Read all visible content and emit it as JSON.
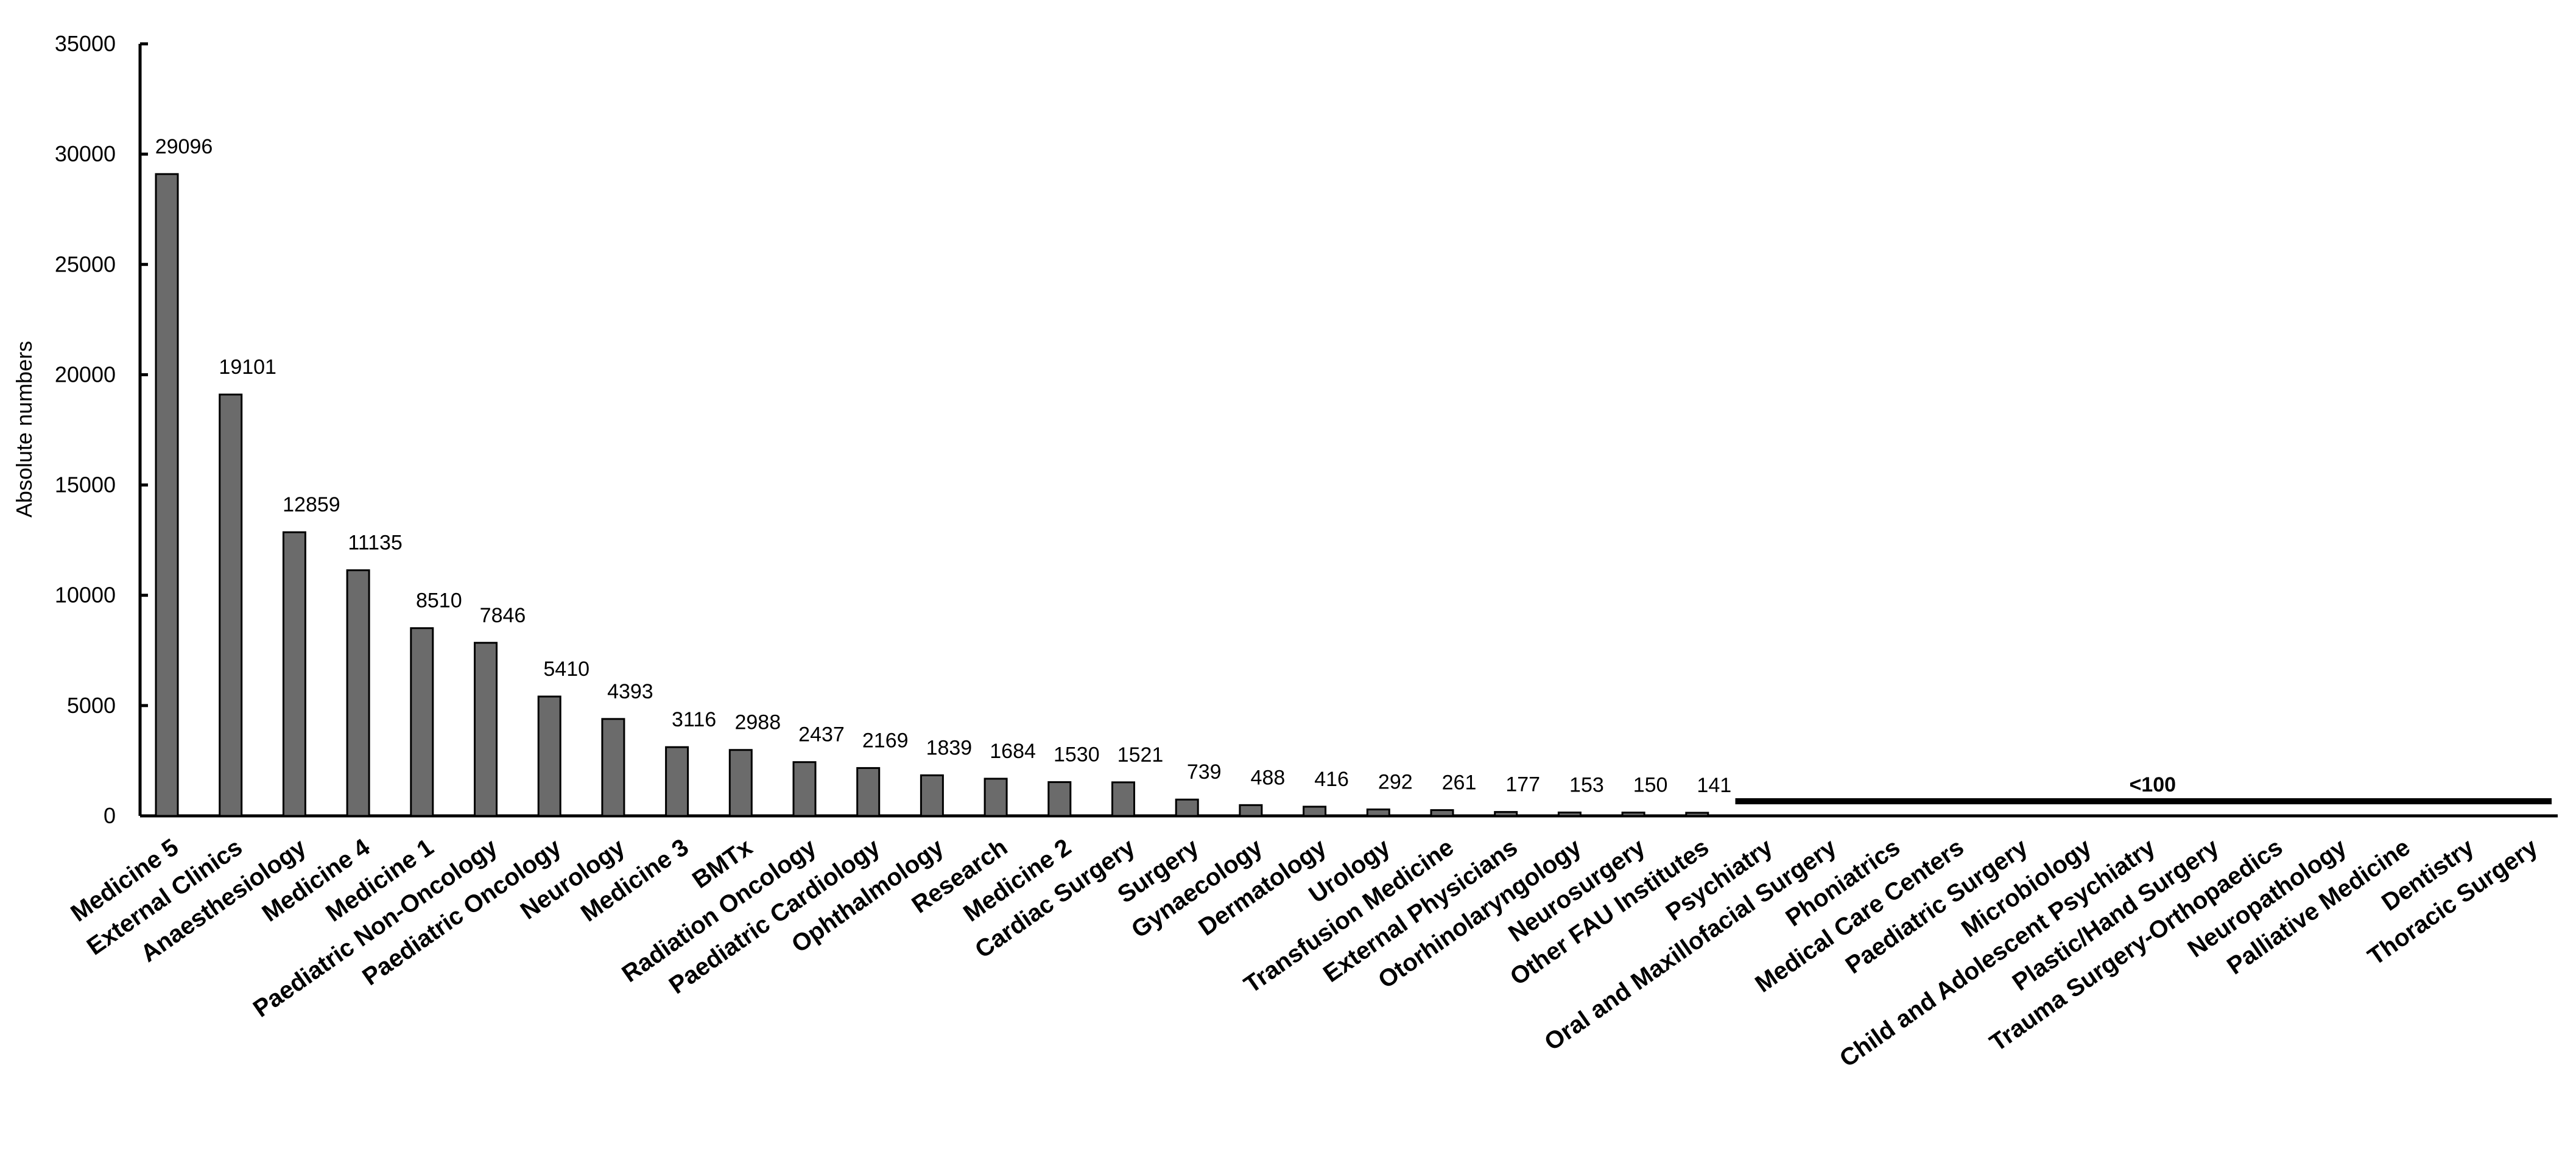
{
  "chart_data": {
    "type": "bar",
    "title": "",
    "xlabel": "",
    "ylabel": "Absolute numbers",
    "ylim": [
      0,
      35000
    ],
    "yticks": [
      0,
      5000,
      10000,
      15000,
      20000,
      25000,
      30000,
      35000
    ],
    "grid": false,
    "legend": "none",
    "bar_color": "#6b6b6b",
    "categories": [
      "Medicine 5",
      "External Clinics",
      "Anaesthesiology",
      "Medicine 4",
      "Medicine 1",
      "Paediatric Non-Oncology",
      "Paediatric Oncology",
      "Neurology",
      "Medicine 3",
      "BMTx",
      "Radiation Oncology",
      "Paediatric Cardiology",
      "Ophthalmology",
      "Research",
      "Medicine 2",
      "Cardiac Surgery",
      "Surgery",
      "Gynaecology",
      "Dermatology",
      "Urology",
      "Transfusion Medicine",
      "External Physicians",
      "Otorhinolaryngology",
      "Neurosurgery",
      "Other FAU Institutes",
      "Psychiatry",
      "Oral and Maxillofacial Surgery",
      "Phoniatrics",
      "Medical Care Centers",
      "Paediatric Surgery",
      "Microbiology",
      "Child and Adolescent Psychiatry",
      "Plastic/Hand Surgery",
      "Trauma Surgery-Orthopaedics",
      "Neuropathology",
      "Palliative Medicine",
      "Dentistry",
      "Thoracic Surgery"
    ],
    "values": [
      29096,
      19101,
      12859,
      11135,
      8510,
      7846,
      5410,
      4393,
      3116,
      2988,
      2437,
      2169,
      1839,
      1684,
      1530,
      1521,
      739,
      488,
      416,
      292,
      261,
      177,
      153,
      150,
      141,
      null,
      null,
      null,
      null,
      null,
      null,
      null,
      null,
      null,
      null,
      null,
      null,
      null
    ],
    "annotation": {
      "text": "<100",
      "applies_to_categories_from": "Psychiatry"
    }
  }
}
